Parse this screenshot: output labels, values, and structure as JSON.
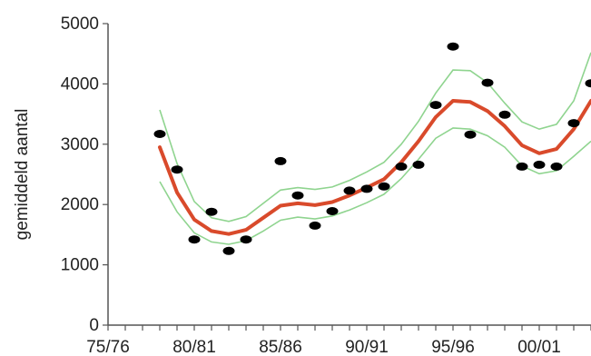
{
  "chart_data": {
    "type": "scatter",
    "ylabel": "gemiddeld aantal",
    "ylim": [
      0,
      5000
    ],
    "xlim": [
      0,
      29
    ],
    "x_tick_labels": [
      {
        "x": 0,
        "label": "75/76"
      },
      {
        "x": 5,
        "label": "80/81"
      },
      {
        "x": 10,
        "label": "85/86"
      },
      {
        "x": 15,
        "label": "90/91"
      },
      {
        "x": 20,
        "label": "95/96"
      },
      {
        "x": 25,
        "label": "00/01"
      }
    ],
    "y_ticks": [
      0,
      1000,
      2000,
      3000,
      4000,
      5000
    ],
    "grid": false,
    "colors": {
      "trend": "#d94a2b",
      "band": "#8fd48f",
      "points": "#000000",
      "axis": "#555555"
    },
    "points": [
      {
        "x": 3,
        "y": 3170
      },
      {
        "x": 4,
        "y": 2580
      },
      {
        "x": 5,
        "y": 1420
      },
      {
        "x": 6,
        "y": 1880
      },
      {
        "x": 7,
        "y": 1230
      },
      {
        "x": 8,
        "y": 1420
      },
      {
        "x": 10,
        "y": 2720
      },
      {
        "x": 11,
        "y": 2150
      },
      {
        "x": 12,
        "y": 1650
      },
      {
        "x": 13,
        "y": 1890
      },
      {
        "x": 14,
        "y": 2230
      },
      {
        "x": 15,
        "y": 2260
      },
      {
        "x": 16,
        "y": 2300
      },
      {
        "x": 17,
        "y": 2630
      },
      {
        "x": 18,
        "y": 2660
      },
      {
        "x": 19,
        "y": 3650
      },
      {
        "x": 20,
        "y": 4620
      },
      {
        "x": 21,
        "y": 3160
      },
      {
        "x": 22,
        "y": 4020
      },
      {
        "x": 23,
        "y": 3490
      },
      {
        "x": 24,
        "y": 2630
      },
      {
        "x": 25,
        "y": 2660
      },
      {
        "x": 26,
        "y": 2630
      },
      {
        "x": 27,
        "y": 3350
      },
      {
        "x": 28,
        "y": 4010
      }
    ],
    "trend": [
      {
        "x": 3,
        "y": 2950
      },
      {
        "x": 4,
        "y": 2200
      },
      {
        "x": 5,
        "y": 1750
      },
      {
        "x": 6,
        "y": 1560
      },
      {
        "x": 7,
        "y": 1510
      },
      {
        "x": 8,
        "y": 1580
      },
      {
        "x": 9,
        "y": 1780
      },
      {
        "x": 10,
        "y": 1980
      },
      {
        "x": 11,
        "y": 2020
      },
      {
        "x": 12,
        "y": 1990
      },
      {
        "x": 13,
        "y": 2040
      },
      {
        "x": 14,
        "y": 2150
      },
      {
        "x": 15,
        "y": 2280
      },
      {
        "x": 16,
        "y": 2420
      },
      {
        "x": 17,
        "y": 2700
      },
      {
        "x": 18,
        "y": 3050
      },
      {
        "x": 19,
        "y": 3450
      },
      {
        "x": 20,
        "y": 3720
      },
      {
        "x": 21,
        "y": 3700
      },
      {
        "x": 22,
        "y": 3550
      },
      {
        "x": 23,
        "y": 3300
      },
      {
        "x": 24,
        "y": 2980
      },
      {
        "x": 25,
        "y": 2850
      },
      {
        "x": 26,
        "y": 2920
      },
      {
        "x": 27,
        "y": 3250
      },
      {
        "x": 28,
        "y": 3720
      }
    ],
    "upper_band": [
      {
        "x": 3,
        "y": 3570
      },
      {
        "x": 4,
        "y": 2680
      },
      {
        "x": 5,
        "y": 2050
      },
      {
        "x": 6,
        "y": 1780
      },
      {
        "x": 7,
        "y": 1720
      },
      {
        "x": 8,
        "y": 1800
      },
      {
        "x": 9,
        "y": 2020
      },
      {
        "x": 10,
        "y": 2240
      },
      {
        "x": 11,
        "y": 2280
      },
      {
        "x": 12,
        "y": 2250
      },
      {
        "x": 13,
        "y": 2290
      },
      {
        "x": 14,
        "y": 2400
      },
      {
        "x": 15,
        "y": 2540
      },
      {
        "x": 16,
        "y": 2700
      },
      {
        "x": 17,
        "y": 3000
      },
      {
        "x": 18,
        "y": 3380
      },
      {
        "x": 19,
        "y": 3850
      },
      {
        "x": 20,
        "y": 4230
      },
      {
        "x": 21,
        "y": 4220
      },
      {
        "x": 22,
        "y": 4020
      },
      {
        "x": 23,
        "y": 3680
      },
      {
        "x": 24,
        "y": 3370
      },
      {
        "x": 25,
        "y": 3250
      },
      {
        "x": 26,
        "y": 3330
      },
      {
        "x": 27,
        "y": 3720
      },
      {
        "x": 28,
        "y": 4520
      }
    ],
    "lower_band": [
      {
        "x": 3,
        "y": 2380
      },
      {
        "x": 4,
        "y": 1880
      },
      {
        "x": 5,
        "y": 1530
      },
      {
        "x": 6,
        "y": 1380
      },
      {
        "x": 7,
        "y": 1340
      },
      {
        "x": 8,
        "y": 1400
      },
      {
        "x": 9,
        "y": 1560
      },
      {
        "x": 10,
        "y": 1740
      },
      {
        "x": 11,
        "y": 1790
      },
      {
        "x": 12,
        "y": 1760
      },
      {
        "x": 13,
        "y": 1810
      },
      {
        "x": 14,
        "y": 1910
      },
      {
        "x": 15,
        "y": 2030
      },
      {
        "x": 16,
        "y": 2170
      },
      {
        "x": 17,
        "y": 2430
      },
      {
        "x": 18,
        "y": 2750
      },
      {
        "x": 19,
        "y": 3100
      },
      {
        "x": 20,
        "y": 3270
      },
      {
        "x": 21,
        "y": 3250
      },
      {
        "x": 22,
        "y": 3140
      },
      {
        "x": 23,
        "y": 2950
      },
      {
        "x": 24,
        "y": 2640
      },
      {
        "x": 25,
        "y": 2510
      },
      {
        "x": 26,
        "y": 2560
      },
      {
        "x": 27,
        "y": 2800
      },
      {
        "x": 28,
        "y": 3050
      }
    ]
  }
}
